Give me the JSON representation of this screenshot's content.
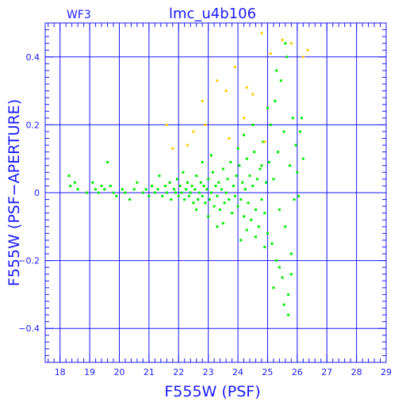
{
  "chart_data": {
    "type": "scatter",
    "title": "lmc_u4b106",
    "corner_label": "WF3",
    "xlabel": "F555W (PSF)",
    "ylabel": "F555W (PSF−APERTURE)",
    "xlim": [
      17.5,
      29
    ],
    "ylim": [
      -0.5,
      0.5
    ],
    "xticks": [
      18,
      19,
      20,
      21,
      22,
      23,
      24,
      25,
      26,
      27,
      28,
      29
    ],
    "yticks": [
      -0.4,
      -0.2,
      0,
      0.2,
      0.4
    ],
    "ytick_labels": [
      "−0.4",
      "−0.2",
      "0",
      "0.2",
      "0.4"
    ],
    "grid": true,
    "series": [
      {
        "color": "#00ee00",
        "points": [
          [
            18.3,
            0.05
          ],
          [
            18.35,
            0.02
          ],
          [
            18.5,
            0.03
          ],
          [
            18.6,
            0.01
          ],
          [
            18.9,
            0.0
          ],
          [
            19.1,
            0.03
          ],
          [
            19.2,
            0.01
          ],
          [
            19.3,
            0.0
          ],
          [
            19.4,
            0.02
          ],
          [
            19.5,
            0.01
          ],
          [
            19.6,
            0.09
          ],
          [
            19.7,
            0.02
          ],
          [
            19.8,
            0.0
          ],
          [
            19.9,
            -0.01
          ],
          [
            20.1,
            0.01
          ],
          [
            20.2,
            0.0
          ],
          [
            20.35,
            -0.02
          ],
          [
            20.5,
            0.01
          ],
          [
            20.6,
            0.03
          ],
          [
            20.8,
            0.0
          ],
          [
            20.9,
            0.01
          ],
          [
            21.0,
            -0.01
          ],
          [
            21.1,
            0.02
          ],
          [
            21.2,
            0.0
          ],
          [
            21.3,
            0.01
          ],
          [
            21.35,
            0.05
          ],
          [
            21.45,
            -0.01
          ],
          [
            21.55,
            0.02
          ],
          [
            21.6,
            0.0
          ],
          [
            21.7,
            0.03
          ],
          [
            21.75,
            -0.02
          ],
          [
            21.85,
            0.01
          ],
          [
            21.9,
            0.0
          ],
          [
            21.95,
            0.04
          ],
          [
            22.0,
            -0.01
          ],
          [
            22.05,
            0.02
          ],
          [
            22.1,
            0.0
          ],
          [
            22.15,
            0.06
          ],
          [
            22.2,
            -0.02
          ],
          [
            22.25,
            0.01
          ],
          [
            22.3,
            0.03
          ],
          [
            22.35,
            -0.01
          ],
          [
            22.4,
            0.0
          ],
          [
            22.45,
            0.02
          ],
          [
            22.5,
            -0.03
          ],
          [
            22.55,
            0.01
          ],
          [
            22.6,
            0.05
          ],
          [
            22.65,
            -0.02
          ],
          [
            22.7,
            0.0
          ],
          [
            22.75,
            0.03
          ],
          [
            22.8,
            -0.01
          ],
          [
            22.85,
            0.02
          ],
          [
            22.9,
            -0.03
          ],
          [
            22.95,
            0.01
          ],
          [
            23.0,
            0.04
          ],
          [
            23.05,
            -0.02
          ],
          [
            23.1,
            0.0
          ],
          [
            23.15,
            0.06
          ],
          [
            23.2,
            -0.04
          ],
          [
            23.25,
            0.02
          ],
          [
            23.3,
            -0.01
          ],
          [
            23.35,
            0.03
          ],
          [
            23.4,
            -0.05
          ],
          [
            23.45,
            0.01
          ],
          [
            23.5,
            0.07
          ],
          [
            23.55,
            -0.03
          ],
          [
            23.6,
            0.0
          ],
          [
            23.65,
            0.04
          ],
          [
            23.7,
            -0.02
          ],
          [
            23.75,
            0.09
          ],
          [
            23.8,
            -0.06
          ],
          [
            23.85,
            0.02
          ],
          [
            23.9,
            -0.01
          ],
          [
            23.95,
            0.05
          ],
          [
            24.0,
            -0.04
          ],
          [
            24.05,
            0.08
          ],
          [
            24.1,
            -0.02
          ],
          [
            24.15,
            0.03
          ],
          [
            24.2,
            -0.07
          ],
          [
            24.25,
            0.01
          ],
          [
            24.3,
            0.1
          ],
          [
            24.35,
            -0.03
          ],
          [
            24.4,
            0.05
          ],
          [
            24.45,
            -0.08
          ],
          [
            24.5,
            0.02
          ],
          [
            24.55,
            0.12
          ],
          [
            24.6,
            -0.05
          ],
          [
            24.65,
            0.04
          ],
          [
            24.7,
            -0.1
          ],
          [
            24.75,
            0.07
          ],
          [
            24.8,
            -0.02
          ],
          [
            24.85,
            0.15
          ],
          [
            24.9,
            -0.06
          ],
          [
            24.95,
            0.03
          ],
          [
            25.0,
            -0.12
          ],
          [
            25.05,
            0.09
          ],
          [
            25.1,
            0.2
          ],
          [
            25.15,
            -0.15
          ],
          [
            25.2,
            0.04
          ],
          [
            25.25,
            0.27
          ],
          [
            25.3,
            -0.2
          ],
          [
            25.35,
            0.12
          ],
          [
            25.4,
            -0.05
          ],
          [
            25.45,
            0.33
          ],
          [
            25.5,
            -0.25
          ],
          [
            25.55,
            0.18
          ],
          [
            25.6,
            -0.1
          ],
          [
            25.65,
            0.4
          ],
          [
            25.7,
            -0.3
          ],
          [
            25.75,
            0.08
          ],
          [
            25.8,
            -0.18
          ],
          [
            25.85,
            0.22
          ],
          [
            25.9,
            -0.02
          ],
          [
            25.95,
            0.14
          ],
          [
            26.0,
            0.06
          ],
          [
            26.05,
            -0.01
          ],
          [
            26.1,
            0.18
          ],
          [
            26.15,
            0.22
          ],
          [
            26.2,
            0.1
          ],
          [
            23.1,
            0.11
          ],
          [
            24.2,
            0.17
          ],
          [
            24.5,
            0.2
          ],
          [
            24.8,
            0.08
          ],
          [
            25.0,
            0.25
          ],
          [
            25.3,
            0.36
          ],
          [
            25.6,
            0.44
          ],
          [
            24.0,
            0.13
          ],
          [
            22.8,
            0.09
          ],
          [
            23.5,
            -0.09
          ],
          [
            24.3,
            -0.11
          ],
          [
            24.9,
            -0.16
          ],
          [
            25.4,
            -0.22
          ],
          [
            25.7,
            -0.36
          ],
          [
            25.2,
            -0.28
          ],
          [
            24.6,
            -0.13
          ],
          [
            23.0,
            -0.07
          ],
          [
            22.6,
            -0.05
          ],
          [
            23.3,
            -0.1
          ],
          [
            24.1,
            -0.14
          ],
          [
            25.8,
            -0.24
          ],
          [
            25.55,
            -0.33
          ]
        ]
      },
      {
        "color": "#ffcc00",
        "points": [
          [
            21.6,
            0.2
          ],
          [
            21.8,
            0.13
          ],
          [
            22.3,
            0.14
          ],
          [
            22.5,
            0.18
          ],
          [
            22.8,
            0.27
          ],
          [
            23.3,
            0.33
          ],
          [
            23.6,
            0.3
          ],
          [
            23.9,
            0.37
          ],
          [
            24.2,
            0.22
          ],
          [
            24.5,
            0.29
          ],
          [
            24.8,
            0.47
          ],
          [
            25.1,
            0.41
          ],
          [
            25.5,
            0.45
          ],
          [
            26.2,
            0.4
          ],
          [
            26.35,
            0.42
          ],
          [
            24.9,
            0.15
          ],
          [
            23.7,
            0.16
          ],
          [
            22.9,
            0.2
          ],
          [
            25.8,
            0.44
          ],
          [
            24.3,
            0.31
          ]
        ]
      }
    ]
  }
}
